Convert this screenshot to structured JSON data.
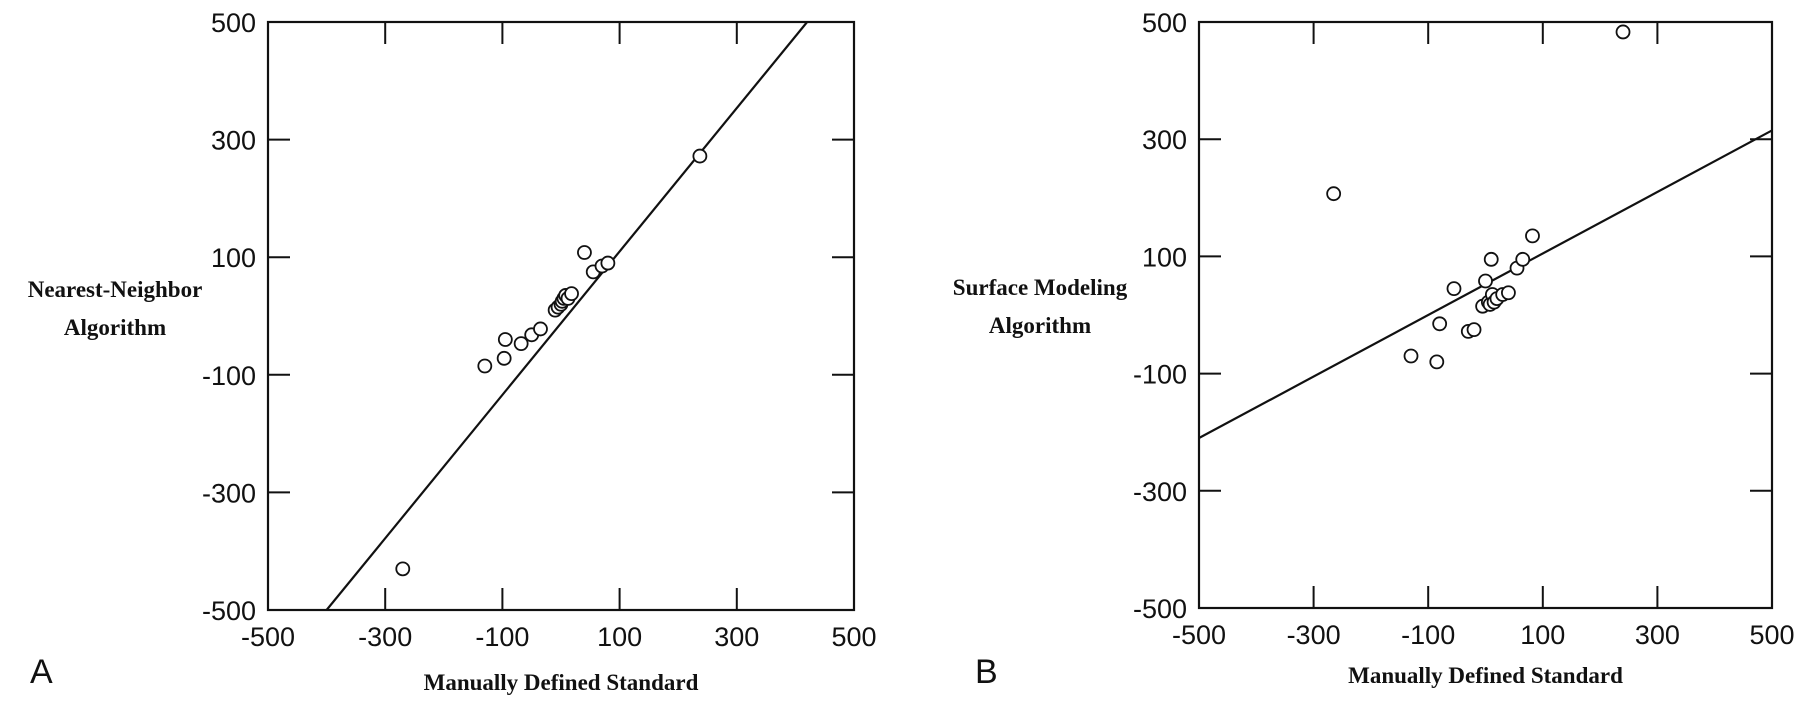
{
  "chart_data": [
    {
      "type": "scatter",
      "panel_label": "A",
      "xlabel": "Manually Defined Standard",
      "ylabel_lines": [
        "Nearest-Neighbor",
        "Algorithm"
      ],
      "xlim": [
        -500,
        500
      ],
      "ylim": [
        -500,
        500
      ],
      "xticks": [
        -500,
        -300,
        -100,
        100,
        300,
        500
      ],
      "yticks": [
        -500,
        -300,
        -100,
        100,
        300,
        500
      ],
      "grid": false,
      "points": [
        [
          -270,
          -430
        ],
        [
          -130,
          -85
        ],
        [
          -95,
          -40
        ],
        [
          -97,
          -72
        ],
        [
          -68,
          -47
        ],
        [
          -50,
          -32
        ],
        [
          -35,
          -22
        ],
        [
          -10,
          10
        ],
        [
          -5,
          15
        ],
        [
          0,
          20
        ],
        [
          2,
          25
        ],
        [
          5,
          30
        ],
        [
          8,
          35
        ],
        [
          12,
          30
        ],
        [
          18,
          38
        ],
        [
          40,
          108
        ],
        [
          55,
          75
        ],
        [
          70,
          85
        ],
        [
          80,
          90
        ],
        [
          237,
          272
        ]
      ],
      "fit_line": [
        [
          -400,
          -500
        ],
        [
          420,
          500
        ]
      ]
    },
    {
      "type": "scatter",
      "panel_label": "B",
      "xlabel": "Manually Defined Standard",
      "ylabel_lines": [
        "Surface Modeling",
        "Algorithm"
      ],
      "xlim": [
        -500,
        500
      ],
      "ylim": [
        -500,
        500
      ],
      "xticks": [
        -500,
        -300,
        -100,
        100,
        300,
        500
      ],
      "yticks": [
        -500,
        -300,
        -100,
        100,
        300,
        500
      ],
      "grid": false,
      "points": [
        [
          -265,
          207
        ],
        [
          -130,
          -70
        ],
        [
          -85,
          -80
        ],
        [
          -80,
          -15
        ],
        [
          -55,
          45
        ],
        [
          -30,
          -28
        ],
        [
          -20,
          -25
        ],
        [
          -5,
          15
        ],
        [
          0,
          58
        ],
        [
          5,
          22
        ],
        [
          8,
          18
        ],
        [
          10,
          95
        ],
        [
          12,
          35
        ],
        [
          15,
          22
        ],
        [
          20,
          28
        ],
        [
          30,
          35
        ],
        [
          40,
          38
        ],
        [
          55,
          80
        ],
        [
          65,
          95
        ],
        [
          82,
          135
        ],
        [
          240,
          483
        ]
      ],
      "fit_line": [
        [
          -500,
          -210
        ],
        [
          500,
          315
        ]
      ]
    }
  ]
}
